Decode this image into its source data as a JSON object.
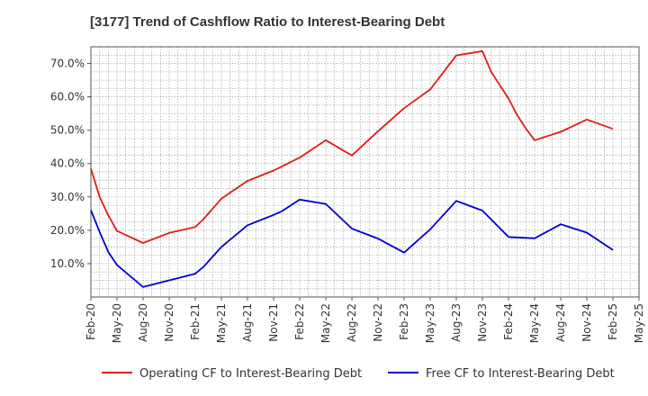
{
  "chart_data": {
    "type": "line",
    "title": "[3177]  Trend of Cashflow Ratio to Interest-Bearing Debt",
    "xlabel": "",
    "ylabel": "",
    "x_tick_labels": [
      "Feb-20",
      "May-20",
      "Aug-20",
      "Nov-20",
      "Feb-21",
      "May-21",
      "Aug-21",
      "Nov-21",
      "Feb-22",
      "May-22",
      "Aug-22",
      "Nov-22",
      "Feb-23",
      "May-23",
      "Aug-23",
      "Nov-23",
      "Feb-24",
      "May-24",
      "Aug-24",
      "Nov-24",
      "Feb-25",
      "May-25"
    ],
    "y_tick_labels": [
      "10.0%",
      "20.0%",
      "30.0%",
      "40.0%",
      "50.0%",
      "60.0%",
      "70.0%"
    ],
    "y_ticks": [
      10,
      20,
      30,
      40,
      50,
      60,
      70
    ],
    "ylim": [
      0,
      75
    ],
    "x_range_months": [
      0,
      63
    ],
    "grid": true,
    "legend_position": "bottom",
    "series": [
      {
        "name": "Operating CF to Interest-Bearing Debt",
        "color": "#e31a1c",
        "x": [
          "Feb-20",
          "Mar-20",
          "Apr-20",
          "May-20",
          "Aug-20",
          "Nov-20",
          "Feb-21",
          "Mar-21",
          "May-21",
          "Aug-21",
          "Nov-21",
          "Dec-21",
          "Feb-22",
          "May-22",
          "Aug-22",
          "Nov-22",
          "Feb-23",
          "May-23",
          "Aug-23",
          "Nov-23",
          "Dec-23",
          "Feb-24",
          "Mar-24",
          "Apr-24",
          "May-24",
          "Aug-24",
          "Nov-24",
          "Feb-25"
        ],
        "x_months": [
          0,
          1,
          2,
          3,
          6,
          9,
          12,
          13,
          15,
          18,
          21,
          22,
          24,
          27,
          30,
          33,
          36,
          39,
          42,
          45,
          46,
          48,
          49,
          50,
          51,
          54,
          57,
          60
        ],
        "values": [
          38.5,
          30,
          24.5,
          19.8,
          16.2,
          19.2,
          21,
          23.5,
          29.5,
          34.8,
          37.9,
          39.2,
          41.8,
          47,
          42.4,
          49.7,
          56.6,
          62.2,
          72.4,
          73.7,
          67.5,
          59.5,
          54.5,
          50.5,
          47,
          49.5,
          53.2,
          50.4
        ]
      },
      {
        "name": "Free CF to Interest-Bearing Debt",
        "color": "#0000cd",
        "x": [
          "Feb-20",
          "Mar-20",
          "Apr-20",
          "May-20",
          "Aug-20",
          "Nov-20",
          "Feb-21",
          "Mar-21",
          "May-21",
          "Aug-21",
          "Nov-21",
          "Dec-21",
          "Feb-22",
          "May-22",
          "Aug-22",
          "Nov-22",
          "Feb-23",
          "May-23",
          "Aug-23",
          "Nov-23",
          "Feb-24",
          "May-24",
          "Aug-24",
          "Nov-24",
          "Feb-25"
        ],
        "x_months": [
          0,
          1,
          2,
          3,
          6,
          9,
          12,
          13,
          15,
          18,
          21,
          22,
          24,
          27,
          30,
          33,
          36,
          39,
          42,
          45,
          48,
          51,
          54,
          57,
          60
        ],
        "values": [
          26,
          19.5,
          13.5,
          9.6,
          3,
          5,
          7,
          9.2,
          15,
          21.5,
          24.6,
          25.8,
          29.2,
          27.9,
          20.5,
          17.5,
          13.3,
          20.3,
          28.8,
          25.9,
          18,
          17.6,
          21.8,
          19.3,
          14.1
        ]
      }
    ]
  }
}
